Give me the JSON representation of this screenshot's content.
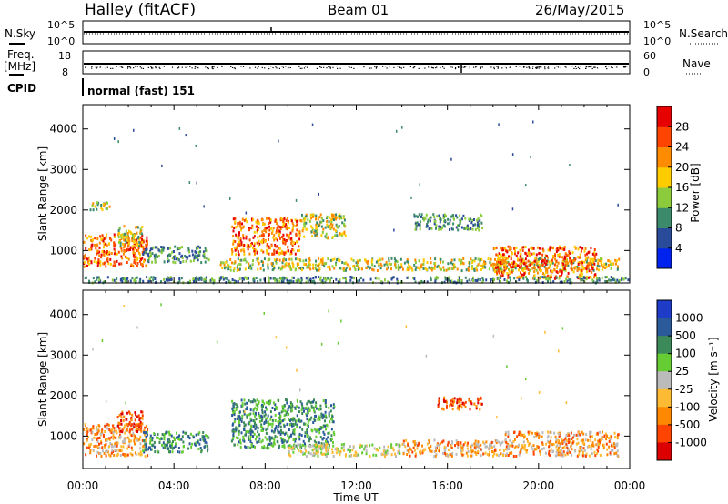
{
  "header": {
    "station": "Halley (fitACF)",
    "beam": "Beam 01",
    "date": "26/May/2015"
  },
  "status_panels": {
    "nsky_label": "N.Sky",
    "nsearch_label": "N.Search",
    "noise_ticks": [
      "10^5",
      "10^0"
    ],
    "freq_label": "Freq.",
    "freq_unit": "[MHz]",
    "freq_ticks": [
      "18",
      "8"
    ],
    "nave_label": "Nave",
    "nave_ticks": [
      "60",
      "0"
    ],
    "cpid_label": "CPID",
    "cpid_value": "normal (fast) 151"
  },
  "colors": {
    "power_scale": [
      "#0022ee",
      "#2a4a9a",
      "#3c8a6c",
      "#8ccc3c",
      "#ffcc00",
      "#ff8c00",
      "#ff4400",
      "#e60000"
    ],
    "velocity_scale": [
      "#1e3cc8",
      "#2a5a9a",
      "#3c8a5a",
      "#66cc33",
      "#bbbbbb",
      "#ffbb33",
      "#ff8800",
      "#ff4400",
      "#dd0000"
    ]
  },
  "chart_data": [
    {
      "type": "heatmap",
      "name": "power",
      "xlabel": "Time UT",
      "ylabel": "Slant Range [km]",
      "x_ticks": [
        "00:00",
        "04:00",
        "08:00",
        "12:00",
        "16:00",
        "20:00",
        "00:00"
      ],
      "y_ticks": [
        1000,
        2000,
        3000,
        4000
      ],
      "ylim": [
        200,
        4600
      ],
      "xlim_hours": [
        0,
        24
      ],
      "colorbar": {
        "label": "Power [dB]",
        "ticks": [
          4,
          8,
          12,
          16,
          20,
          24,
          28
        ],
        "range": [
          0,
          32
        ]
      },
      "features": [
        {
          "t0": 0.0,
          "t1": 2.8,
          "r0": 600,
          "r1": 1400,
          "level": "high"
        },
        {
          "t0": 0.3,
          "t1": 1.3,
          "r0": 2000,
          "r1": 2200,
          "level": "mid"
        },
        {
          "t0": 1.5,
          "t1": 2.6,
          "r0": 1100,
          "r1": 1600,
          "level": "mid"
        },
        {
          "t0": 2.6,
          "t1": 5.5,
          "r0": 700,
          "r1": 1100,
          "level": "low"
        },
        {
          "t0": 6.5,
          "t1": 9.5,
          "r0": 900,
          "r1": 1800,
          "level": "high"
        },
        {
          "t0": 9.5,
          "t1": 11.5,
          "r0": 1300,
          "r1": 1900,
          "level": "mid"
        },
        {
          "t0": 6.0,
          "t1": 23.5,
          "r0": 500,
          "r1": 800,
          "level": "mid"
        },
        {
          "t0": 14.5,
          "t1": 17.5,
          "r0": 1500,
          "r1": 1900,
          "level": "low"
        },
        {
          "t0": 18.0,
          "t1": 22.5,
          "r0": 300,
          "r1": 1100,
          "level": "high"
        },
        {
          "t0": 0.0,
          "t1": 24.0,
          "r0": 200,
          "r1": 350,
          "level": "low"
        }
      ]
    },
    {
      "type": "heatmap",
      "name": "velocity",
      "xlabel": "Time UT",
      "ylabel": "Slant Range [km]",
      "x_ticks": [
        "00:00",
        "04:00",
        "08:00",
        "12:00",
        "16:00",
        "20:00",
        "00:00"
      ],
      "y_ticks": [
        1000,
        2000,
        3000,
        4000
      ],
      "ylim": [
        200,
        4600
      ],
      "xlim_hours": [
        0,
        24
      ],
      "colorbar": {
        "label": "Velocity [m s⁻¹]",
        "ticks": [
          "1000",
          "500",
          "100",
          "25",
          "-25",
          "-100",
          "-500",
          "-1000"
        ]
      },
      "features": [
        {
          "t0": 0.0,
          "t1": 2.8,
          "r0": 500,
          "r1": 1300,
          "level": "neg"
        },
        {
          "t0": 1.5,
          "t1": 2.6,
          "r0": 1100,
          "r1": 1600,
          "level": "negstrong"
        },
        {
          "t0": 2.6,
          "t1": 5.5,
          "r0": 600,
          "r1": 1100,
          "level": "pos"
        },
        {
          "t0": 6.5,
          "t1": 11.0,
          "r0": 700,
          "r1": 1900,
          "level": "pos"
        },
        {
          "t0": 9.0,
          "t1": 14.0,
          "r0": 500,
          "r1": 800,
          "level": "zero"
        },
        {
          "t0": 14.0,
          "t1": 18.5,
          "r0": 500,
          "r1": 900,
          "level": "neg"
        },
        {
          "t0": 15.5,
          "t1": 17.5,
          "r0": 1650,
          "r1": 1950,
          "level": "negstrong"
        },
        {
          "t0": 18.5,
          "t1": 23.5,
          "r0": 500,
          "r1": 1100,
          "level": "neg"
        }
      ]
    }
  ]
}
